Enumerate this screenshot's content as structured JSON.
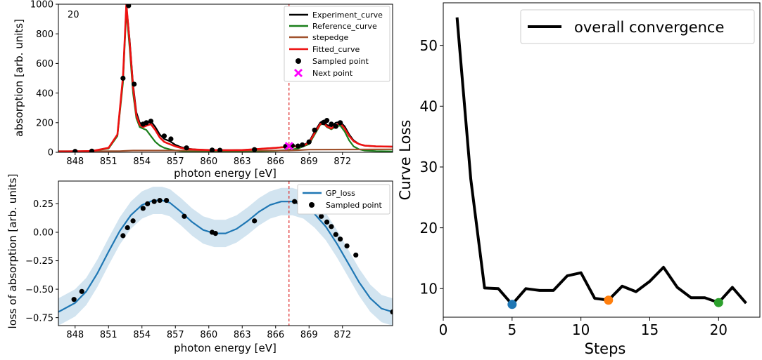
{
  "chart_data": [
    {
      "type": "line",
      "panel_label": "20",
      "xlabel": "photon energy [eV]",
      "ylabel": "absorption [arb. units]",
      "xlim": [
        846.5,
        876.5
      ],
      "ylim": [
        0,
        1000
      ],
      "xticks": [
        848,
        851,
        854,
        857,
        860,
        863,
        866,
        869,
        872
      ],
      "yticks": [
        0,
        200,
        400,
        600,
        800,
        1000
      ],
      "vline_x": 867.2,
      "legend_position": "top-right",
      "series": [
        {
          "name": "Experiment_curve",
          "color": "#000000",
          "x": [
            846.5,
            848,
            849.5,
            851,
            851.8,
            852.3,
            852.6,
            852.9,
            853.2,
            853.5,
            853.8,
            854.1,
            854.4,
            854.8,
            855.2,
            855.6,
            856,
            856.5,
            857,
            857.5,
            858,
            859,
            860,
            861,
            862,
            863,
            864,
            865,
            866,
            867,
            867.5,
            868,
            868.5,
            869,
            869.5,
            870,
            870.3,
            870.6,
            871,
            871.4,
            871.8,
            872.2,
            872.6,
            873,
            873.5,
            874,
            875,
            876.5
          ],
          "y": [
            5,
            6,
            8,
            30,
            120,
            500,
            990,
            760,
            460,
            270,
            200,
            185,
            200,
            210,
            170,
            120,
            90,
            75,
            50,
            35,
            25,
            18,
            15,
            14,
            14,
            15,
            20,
            25,
            30,
            38,
            40,
            42,
            48,
            70,
            140,
            200,
            215,
            185,
            175,
            200,
            205,
            175,
            120,
            80,
            55,
            45,
            40,
            38
          ]
        },
        {
          "name": "Reference_curve",
          "color": "#1a7f1a",
          "x": [
            846.5,
            848,
            849.5,
            851,
            851.8,
            852.3,
            852.6,
            852.9,
            853.2,
            853.5,
            853.8,
            854.1,
            854.4,
            854.8,
            855.2,
            855.6,
            856,
            856.5,
            857,
            857.5,
            858,
            859,
            860,
            862,
            864,
            866,
            867,
            868,
            869,
            869.5,
            870,
            870.3,
            870.6,
            871,
            871.4,
            871.8,
            872.2,
            872.6,
            873,
            873.5,
            874,
            875,
            876.5
          ],
          "y": [
            5,
            6,
            8,
            25,
            110,
            470,
            960,
            700,
            400,
            230,
            170,
            160,
            150,
            110,
            70,
            45,
            30,
            20,
            12,
            8,
            6,
            5,
            5,
            5,
            6,
            10,
            15,
            25,
            55,
            120,
            185,
            195,
            170,
            155,
            175,
            180,
            140,
            80,
            40,
            20,
            12,
            8,
            6
          ]
        },
        {
          "name": "stepedge",
          "color": "#a0522d",
          "x": [
            846.5,
            852,
            852.6,
            853.2,
            860,
            867,
            868,
            869,
            876.5
          ],
          "y": [
            8,
            8,
            10,
            12,
            12,
            12,
            14,
            18,
            20
          ]
        },
        {
          "name": "Fitted_curve",
          "color": "#ee1111",
          "x": [
            846.5,
            848,
            849.5,
            851,
            851.8,
            852.3,
            852.6,
            852.9,
            853.2,
            853.5,
            853.8,
            854.1,
            854.4,
            854.8,
            855.2,
            855.6,
            856,
            856.5,
            857,
            857.5,
            858,
            859,
            860,
            861,
            862,
            863,
            864,
            865,
            866,
            867,
            867.5,
            868,
            868.5,
            869,
            869.5,
            870,
            870.3,
            870.6,
            871,
            871.4,
            871.8,
            872.2,
            872.6,
            873,
            873.5,
            874,
            875,
            876.5
          ],
          "y": [
            5,
            6,
            8,
            30,
            120,
            510,
            1000,
            740,
            440,
            250,
            185,
            170,
            180,
            190,
            150,
            100,
            70,
            55,
            40,
            30,
            22,
            18,
            15,
            14,
            14,
            15,
            20,
            25,
            30,
            36,
            38,
            40,
            45,
            65,
            130,
            190,
            200,
            175,
            160,
            185,
            195,
            160,
            110,
            75,
            55,
            45,
            40,
            38
          ]
        }
      ],
      "sampled_points": {
        "name": "Sampled point",
        "x": [
          848,
          849.5,
          852.3,
          852.8,
          853.3,
          854.1,
          854.4,
          854.8,
          856,
          856.6,
          858,
          860.3,
          861,
          864.1,
          866.9,
          867.5,
          868,
          868.4,
          869,
          869.5,
          870.3,
          870.6,
          871,
          871.4,
          871.8
        ],
        "y": [
          6,
          8,
          500,
          990,
          460,
          190,
          200,
          210,
          110,
          90,
          30,
          15,
          14,
          18,
          40,
          45,
          42,
          50,
          70,
          150,
          200,
          215,
          190,
          175,
          200
        ]
      },
      "next_point": {
        "name": "Next point",
        "x": [
          867.2
        ],
        "y": [
          42
        ]
      }
    },
    {
      "type": "line",
      "xlabel": "photon energy [eV]",
      "ylabel": "loss of absorption [arb. units]",
      "xlim": [
        846.5,
        876.5
      ],
      "ylim": [
        -0.82,
        0.45
      ],
      "xticks": [
        848,
        851,
        854,
        857,
        860,
        863,
        866,
        869,
        872
      ],
      "yticks": [
        -0.75,
        -0.5,
        -0.25,
        0.0,
        0.25
      ],
      "ytick_labels": [
        "−0.75",
        "−0.50",
        "−0.25",
        "0.00",
        "0.25"
      ],
      "vline_x": 867.2,
      "legend_position": "top-right",
      "series": [
        {
          "name": "GP_loss",
          "color": "#1f77b4",
          "x": [
            846.5,
            848,
            849,
            850,
            851,
            852,
            853,
            854,
            855,
            855.8,
            856.5,
            857.5,
            858.5,
            859.5,
            860.5,
            861.5,
            862.5,
            863.5,
            864.5,
            865.5,
            866.5,
            867.5,
            868.5,
            869.5,
            870.5,
            871.5,
            872.5,
            873.5,
            874.5,
            875.5,
            876.5
          ],
          "y": [
            -0.7,
            -0.62,
            -0.52,
            -0.36,
            -0.17,
            0.01,
            0.15,
            0.24,
            0.28,
            0.28,
            0.26,
            0.18,
            0.09,
            0.02,
            -0.01,
            -0.01,
            0.03,
            0.1,
            0.18,
            0.24,
            0.27,
            0.27,
            0.24,
            0.16,
            0.05,
            -0.1,
            -0.27,
            -0.44,
            -0.58,
            -0.67,
            -0.7
          ],
          "band_halfwidth": 0.12
        }
      ],
      "sampled_points": {
        "name": "Sampled point",
        "x": [
          847.9,
          848.6,
          852.3,
          852.7,
          853.2,
          854.1,
          854.5,
          855.1,
          855.6,
          856.2,
          857.8,
          860.3,
          860.6,
          864.1,
          867.7,
          868.1,
          868.5,
          869,
          869.8,
          870.1,
          870.6,
          871,
          871.4,
          871.8,
          872.4,
          873.2,
          876.5
        ],
        "y": [
          -0.59,
          -0.52,
          -0.03,
          0.04,
          0.1,
          0.21,
          0.25,
          0.27,
          0.28,
          0.28,
          0.14,
          0.0,
          -0.01,
          0.1,
          0.27,
          0.26,
          0.24,
          0.22,
          0.18,
          0.14,
          0.09,
          0.05,
          -0.02,
          -0.06,
          -0.12,
          -0.2,
          -0.7
        ]
      }
    },
    {
      "type": "line",
      "xlabel": "Steps",
      "ylabel": "Curve Loss",
      "xlim": [
        0,
        23
      ],
      "ylim": [
        5.3,
        57
      ],
      "xticks": [
        0,
        5,
        10,
        15,
        20
      ],
      "yticks": [
        10,
        20,
        30,
        40,
        50
      ],
      "legend_position": "top-right",
      "series": [
        {
          "name": "overall convergence",
          "color": "#000000",
          "x": [
            1,
            2,
            3,
            4,
            5,
            6,
            7,
            8,
            9,
            10,
            11,
            12,
            13,
            14,
            15,
            16,
            17,
            18,
            19,
            20,
            21,
            22
          ],
          "y": [
            54.6,
            28.0,
            10.1,
            10.0,
            7.4,
            10.0,
            9.7,
            9.7,
            12.1,
            12.6,
            8.4,
            8.1,
            10.4,
            9.5,
            11.2,
            13.5,
            10.2,
            8.5,
            8.5,
            7.7,
            10.2,
            7.6
          ]
        }
      ],
      "markers": [
        {
          "x": 5,
          "y": 7.4,
          "color": "#1f77b4"
        },
        {
          "x": 12,
          "y": 8.1,
          "color": "#ff7f0e"
        },
        {
          "x": 20,
          "y": 7.7,
          "color": "#2ca02c"
        }
      ]
    }
  ]
}
